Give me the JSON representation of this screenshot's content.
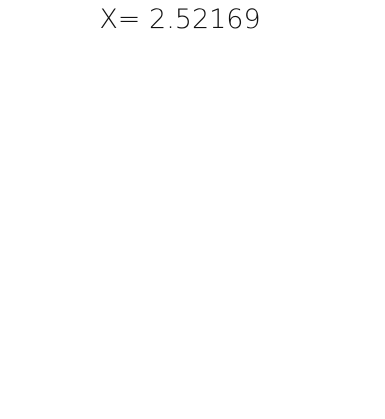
{
  "title": "X= 2.52169"
}
